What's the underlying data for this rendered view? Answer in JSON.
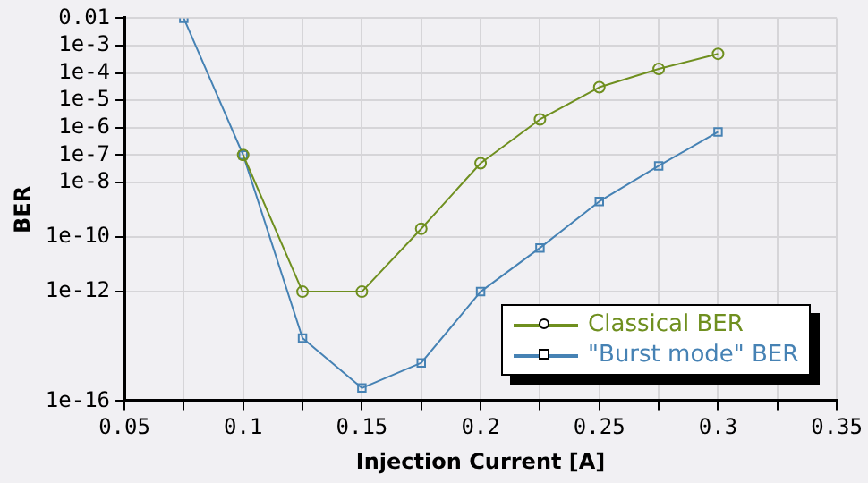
{
  "chart_data": {
    "type": "line",
    "xlabel": "Injection Current [A]",
    "ylabel": "BER",
    "log": "y",
    "grid": true,
    "legend": "bottom right",
    "xlim": [
      0.05,
      0.35
    ],
    "xticks": [
      0.05,
      {
        "value": 0.075,
        "label": null
      },
      0.1,
      {
        "value": 0.125,
        "label": null
      },
      0.15,
      {
        "value": 0.175,
        "label": null
      },
      0.2,
      {
        "value": 0.225,
        "label": null
      },
      0.25,
      {
        "value": 0.275,
        "label": null
      },
      0.3,
      {
        "value": 0.325,
        "label": null
      },
      0.35
    ],
    "ylim": [
      1e-16,
      0.01
    ],
    "yticks": [
      1e-16,
      1e-12,
      {
        "value": 1e-10,
        "label": "1e-10"
      },
      {
        "value": 1e-08,
        "label": "1e-8"
      },
      {
        "value": 1e-07,
        "label": "1e-7"
      },
      {
        "value": 1e-06,
        "label": "1e-6"
      },
      {
        "value": 1e-05,
        "label": "1e-5"
      },
      {
        "value": 0.0001,
        "label": "1e-4"
      },
      {
        "value": 0.001,
        "label": "1e-3"
      },
      0.01
    ],
    "series": [
      {
        "name": "Classical BER",
        "color": "#6f8f1f",
        "marker": "circle",
        "x": [
          0.1,
          0.125,
          0.15,
          0.175,
          0.2,
          0.225,
          0.25,
          0.275,
          0.3
        ],
        "values": [
          1e-07,
          1e-12,
          1e-12,
          2e-10,
          5e-08,
          2e-06,
          3e-05,
          0.00014,
          0.0005
        ]
      },
      {
        "name": "\"Burst mode\" BER",
        "color": "#4682b4",
        "marker": "square",
        "x": [
          0.075,
          0.1,
          0.125,
          0.15,
          0.175,
          0.2,
          0.225,
          0.25,
          0.275,
          0.3
        ],
        "values": [
          0.01,
          1e-07,
          2e-14,
          3e-16,
          2.5e-15,
          1e-12,
          4e-11,
          2e-09,
          4e-08,
          7e-07
        ]
      }
    ]
  }
}
